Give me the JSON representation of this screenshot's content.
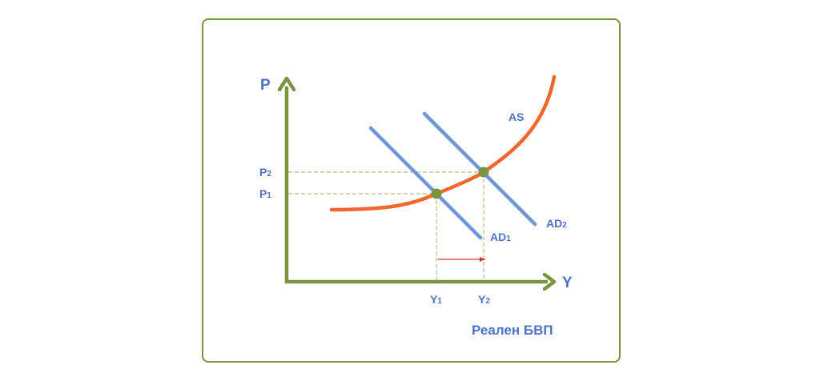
{
  "diagram": {
    "axes": {
      "y_label": "P",
      "x_label": "Y",
      "caption": "Реален БВП"
    },
    "curves": {
      "as_label": "AS",
      "ad1_label": "AD",
      "ad1_sub": "1",
      "ad2_label": "AD",
      "ad2_sub": "2"
    },
    "ticks": {
      "p1": "P",
      "p1_sub": "1",
      "p2": "P",
      "p2_sub": "2",
      "y1": "Y",
      "y1_sub": "1",
      "y2": "Y",
      "y2_sub": "2"
    },
    "shift": "AD1 → AD2: P1 → P2, Y1 → Y2"
  },
  "colors": {
    "frame": "#7a9440",
    "axis": "#7a9440",
    "as_curve": "#f0682e",
    "ad_lines": "#6f95de",
    "labels": "#4f73c4",
    "equilibrium_points": "#7a9440",
    "guide_lines": "#98b060",
    "shift_arrow": "#e03030"
  }
}
